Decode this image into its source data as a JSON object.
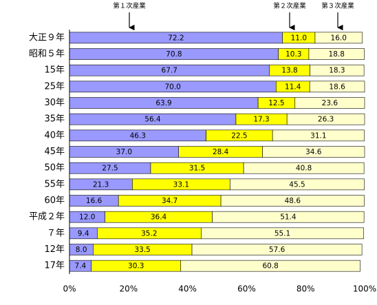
{
  "chart_data": {
    "type": "stacked-bar-horizontal",
    "categories": [
      "大正９年",
      "昭和５年",
      "15年",
      "25年",
      "30年",
      "35年",
      "40年",
      "45年",
      "50年",
      "55年",
      "60年",
      "平成２年",
      "７年",
      "12年",
      "17年"
    ],
    "series": [
      {
        "name": "第１次産業",
        "color": "#9999ff",
        "values": [
          72.2,
          70.8,
          67.7,
          70.0,
          63.9,
          56.4,
          46.3,
          37.0,
          27.5,
          21.3,
          16.6,
          12.0,
          9.4,
          8.0,
          7.4
        ],
        "value_labels": [
          "72.2",
          "70.8",
          "67.7",
          "70.0",
          "63.9",
          "56.4",
          "46.3",
          "37.0",
          "27.5",
          "21.3",
          "16.6",
          "12.0",
          "9.4",
          "8.0",
          "7.4"
        ]
      },
      {
        "name": "第２次産業",
        "color": "#ffff00",
        "values": [
          11.0,
          10.3,
          13.8,
          11.4,
          12.5,
          17.3,
          22.5,
          28.4,
          31.5,
          33.1,
          34.7,
          36.4,
          35.2,
          33.5,
          30.3
        ],
        "value_labels": [
          "11.0",
          "10.3",
          "13.8",
          "11.4",
          "12.5",
          "17.3",
          "22.5",
          "28.4",
          "31.5",
          "33.1",
          "34.7",
          "36.4",
          "35.2",
          "33.5",
          "30.3"
        ]
      },
      {
        "name": "第３次産業",
        "color": "#ffffcc",
        "values": [
          16.0,
          18.8,
          18.3,
          18.6,
          23.6,
          26.3,
          31.1,
          34.6,
          40.8,
          45.5,
          48.6,
          51.4,
          55.1,
          57.6,
          60.8
        ],
        "value_labels": [
          "16.0",
          "18.8",
          "18.3",
          "18.6",
          "23.6",
          "26.3",
          "31.1",
          "34.6",
          "40.8",
          "45.5",
          "48.6",
          "51.4",
          "55.1",
          "57.6",
          "60.8"
        ]
      }
    ],
    "xlim": [
      0,
      100
    ],
    "xticks": [
      {
        "value": 0,
        "label": "0%"
      },
      {
        "value": 20,
        "label": "20%"
      },
      {
        "value": 40,
        "label": "40%"
      },
      {
        "value": 60,
        "label": "60%"
      },
      {
        "value": 80,
        "label": "80%"
      },
      {
        "value": 100,
        "label": "100%"
      }
    ]
  }
}
